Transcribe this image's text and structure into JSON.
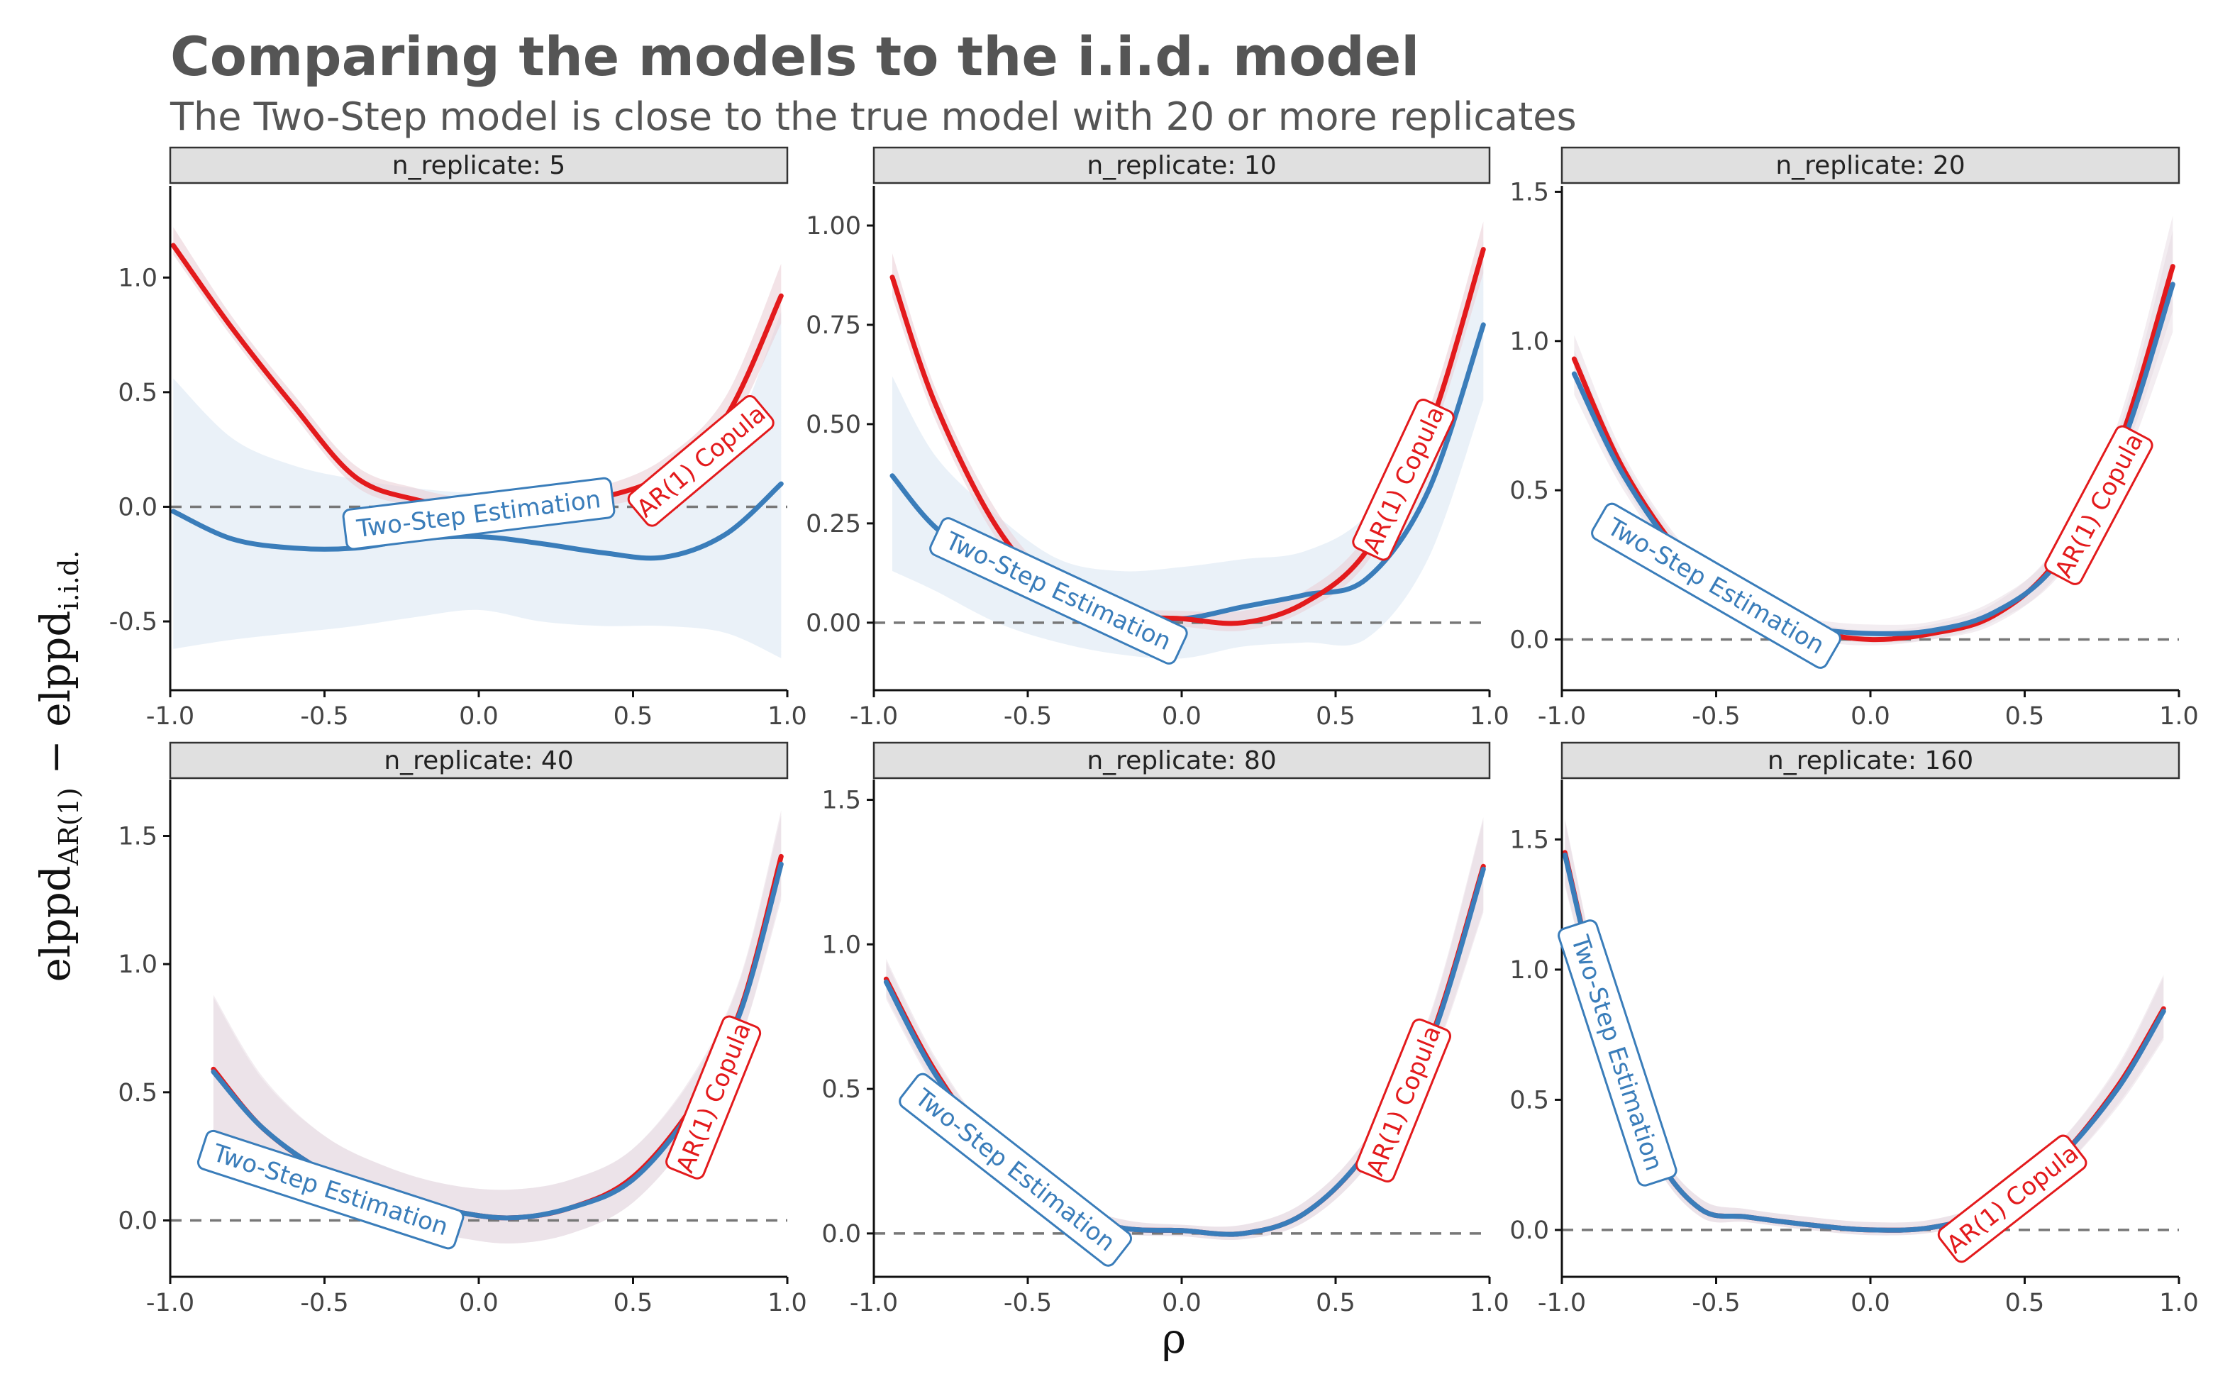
{
  "title": "Comparing the models to the i.i.d. model",
  "subtitle": "The Two-Step model is close to the true model with 20 or more replicates",
  "x_axis_label": "ρ",
  "y_axis_label": {
    "base1": "elppd",
    "sub1": "AR(1)",
    "minus": " − ",
    "base2": "elppd",
    "sub2": "i.i.d."
  },
  "colors": {
    "two_step": "#3A7DBA",
    "two_step_band": "#DCE8F4",
    "copula": "#E31A1C",
    "copula_band": "#E9CCD4",
    "overlap_band": "#E4D6E0",
    "reference": "#777777",
    "strip_fill": "#E0E0E0"
  },
  "chart_data": [
    {
      "type": "line",
      "panel": "n_replicate: 5",
      "xlim": [
        -1,
        1
      ],
      "ylim": [
        -0.8,
        1.4
      ],
      "x_ticks": [
        "-1.0",
        "-0.5",
        "0.0",
        "0.5",
        "1.0"
      ],
      "y_ticks": [
        "-0.5",
        "0.0",
        "0.5",
        "1.0"
      ],
      "reference_line": 0,
      "series": [
        {
          "name": "AR(1) Copula",
          "x": [
            -0.99,
            -0.8,
            -0.6,
            -0.4,
            -0.2,
            0.0,
            0.2,
            0.4,
            0.6,
            0.8,
            0.98
          ],
          "y": [
            1.14,
            0.78,
            0.44,
            0.13,
            0.03,
            -0.01,
            -0.01,
            0.04,
            0.14,
            0.39,
            0.92
          ],
          "lower": [
            1.1,
            0.74,
            0.4,
            0.09,
            0.0,
            -0.04,
            -0.04,
            0.0,
            0.08,
            0.31,
            0.8
          ],
          "upper": [
            1.22,
            0.83,
            0.49,
            0.18,
            0.08,
            0.03,
            0.03,
            0.09,
            0.21,
            0.48,
            1.06
          ],
          "label": "AR(1) Copula"
        },
        {
          "name": "Two-Step Estimation",
          "x": [
            -0.99,
            -0.8,
            -0.6,
            -0.4,
            -0.2,
            0.0,
            0.2,
            0.4,
            0.6,
            0.8,
            0.98
          ],
          "y": [
            -0.02,
            -0.14,
            -0.18,
            -0.18,
            -0.14,
            -0.13,
            -0.16,
            -0.2,
            -0.22,
            -0.12,
            0.1
          ],
          "lower": [
            -0.62,
            -0.58,
            -0.55,
            -0.52,
            -0.48,
            -0.45,
            -0.5,
            -0.52,
            -0.52,
            -0.55,
            -0.66
          ],
          "upper": [
            0.56,
            0.3,
            0.18,
            0.12,
            0.08,
            0.06,
            0.07,
            0.07,
            0.07,
            0.25,
            0.85
          ],
          "label": "Two-Step Estimation"
        }
      ]
    },
    {
      "type": "line",
      "panel": "n_replicate: 10",
      "xlim": [
        -1,
        1
      ],
      "ylim": [
        -0.17,
        1.1
      ],
      "x_ticks": [
        "-1.0",
        "-0.5",
        "0.0",
        "0.5",
        "1.0"
      ],
      "y_ticks": [
        "0.00",
        "0.25",
        "0.50",
        "0.75",
        "1.00"
      ],
      "reference_line": 0,
      "series": [
        {
          "name": "AR(1) Copula",
          "x": [
            -0.94,
            -0.8,
            -0.6,
            -0.4,
            -0.2,
            0.0,
            0.2,
            0.4,
            0.6,
            0.8,
            0.98
          ],
          "y": [
            0.87,
            0.55,
            0.24,
            0.07,
            0.02,
            0.01,
            0.0,
            0.05,
            0.18,
            0.48,
            0.94
          ],
          "lower": [
            0.82,
            0.51,
            0.21,
            0.05,
            0.0,
            -0.01,
            -0.02,
            0.03,
            0.15,
            0.44,
            0.88
          ],
          "upper": [
            0.93,
            0.59,
            0.28,
            0.1,
            0.04,
            0.03,
            0.03,
            0.08,
            0.22,
            0.53,
            1.01
          ],
          "label": "AR(1) Copula"
        },
        {
          "name": "Two-Step Estimation",
          "x": [
            -0.94,
            -0.8,
            -0.6,
            -0.4,
            -0.2,
            0.0,
            0.2,
            0.4,
            0.6,
            0.8,
            0.98
          ],
          "y": [
            0.37,
            0.24,
            0.13,
            0.06,
            0.02,
            0.01,
            0.04,
            0.07,
            0.11,
            0.33,
            0.75
          ],
          "lower": [
            0.13,
            0.08,
            0.0,
            -0.05,
            -0.08,
            -0.09,
            -0.06,
            -0.05,
            -0.04,
            0.16,
            0.56
          ],
          "upper": [
            0.62,
            0.42,
            0.27,
            0.16,
            0.13,
            0.14,
            0.16,
            0.18,
            0.27,
            0.5,
            0.96
          ],
          "label": "Two-Step Estimation"
        }
      ]
    },
    {
      "type": "line",
      "panel": "n_replicate: 20",
      "xlim": [
        -1,
        1
      ],
      "ylim": [
        -0.17,
        1.52
      ],
      "x_ticks": [
        "-1.0",
        "-0.5",
        "0.0",
        "0.5",
        "1.0"
      ],
      "y_ticks": [
        "0.0",
        "0.5",
        "1.0",
        "1.5"
      ],
      "reference_line": 0,
      "series": [
        {
          "name": "AR(1) Copula",
          "x": [
            -0.96,
            -0.8,
            -0.6,
            -0.4,
            -0.2,
            0.0,
            0.2,
            0.4,
            0.6,
            0.8,
            0.98
          ],
          "y": [
            0.94,
            0.57,
            0.27,
            0.1,
            0.03,
            0.0,
            0.02,
            0.08,
            0.26,
            0.64,
            1.25
          ],
          "lower": [
            0.87,
            0.52,
            0.23,
            0.07,
            0.0,
            -0.02,
            0.0,
            0.05,
            0.21,
            0.56,
            1.1
          ],
          "upper": [
            1.02,
            0.62,
            0.31,
            0.14,
            0.06,
            0.03,
            0.05,
            0.12,
            0.31,
            0.72,
            1.42
          ],
          "label": "AR(1) Copula"
        },
        {
          "name": "Two-Step Estimation",
          "x": [
            -0.96,
            -0.8,
            -0.6,
            -0.4,
            -0.2,
            0.0,
            0.2,
            0.4,
            0.6,
            0.8,
            0.98
          ],
          "y": [
            0.89,
            0.55,
            0.26,
            0.1,
            0.04,
            0.02,
            0.03,
            0.09,
            0.25,
            0.61,
            1.19
          ],
          "lower": [
            0.82,
            0.5,
            0.22,
            0.07,
            0.01,
            -0.01,
            0.0,
            0.06,
            0.2,
            0.53,
            1.03
          ],
          "upper": [
            0.97,
            0.6,
            0.3,
            0.13,
            0.07,
            0.05,
            0.06,
            0.13,
            0.3,
            0.69,
            1.37
          ],
          "label": "Two-Step Estimation"
        }
      ]
    },
    {
      "type": "line",
      "panel": "n_replicate: 40",
      "xlim": [
        -1,
        1
      ],
      "ylim": [
        -0.22,
        1.72
      ],
      "x_ticks": [
        "-1.0",
        "-0.5",
        "0.0",
        "0.5",
        "1.0"
      ],
      "y_ticks": [
        "0.0",
        "0.5",
        "1.0",
        "1.5"
      ],
      "reference_line": 0,
      "series": [
        {
          "name": "AR(1) Copula",
          "x": [
            -0.86,
            -0.7,
            -0.5,
            -0.3,
            -0.1,
            0.1,
            0.3,
            0.5,
            0.7,
            0.85,
            0.98
          ],
          "y": [
            0.59,
            0.36,
            0.19,
            0.1,
            0.04,
            0.01,
            0.05,
            0.17,
            0.46,
            0.83,
            1.42
          ],
          "lower": [
            0.3,
            0.17,
            0.05,
            -0.02,
            -0.06,
            -0.09,
            -0.05,
            0.07,
            0.35,
            0.71,
            1.27
          ],
          "upper": [
            0.88,
            0.56,
            0.33,
            0.21,
            0.14,
            0.12,
            0.16,
            0.28,
            0.58,
            0.96,
            1.6
          ],
          "label": "AR(1) Copula"
        },
        {
          "name": "Two-Step Estimation",
          "x": [
            -0.86,
            -0.7,
            -0.5,
            -0.3,
            -0.1,
            0.1,
            0.3,
            0.5,
            0.7,
            0.85,
            0.98
          ],
          "y": [
            0.58,
            0.36,
            0.19,
            0.1,
            0.04,
            0.01,
            0.05,
            0.16,
            0.45,
            0.82,
            1.39
          ],
          "lower": [
            0.3,
            0.17,
            0.05,
            -0.02,
            -0.06,
            -0.09,
            -0.05,
            0.07,
            0.35,
            0.71,
            1.25
          ],
          "upper": [
            0.87,
            0.55,
            0.33,
            0.21,
            0.14,
            0.12,
            0.16,
            0.28,
            0.57,
            0.95,
            1.58
          ],
          "label": "Two-Step Estimation"
        }
      ]
    },
    {
      "type": "line",
      "panel": "n_replicate: 80",
      "xlim": [
        -1,
        1
      ],
      "ylim": [
        -0.15,
        1.57
      ],
      "x_ticks": [
        "-1.0",
        "-0.5",
        "0.0",
        "0.5",
        "1.0"
      ],
      "y_ticks": [
        "0.0",
        "0.5",
        "1.0",
        "1.5"
      ],
      "reference_line": 0,
      "series": [
        {
          "name": "AR(1) Copula",
          "x": [
            -0.96,
            -0.8,
            -0.6,
            -0.4,
            -0.2,
            0.0,
            0.2,
            0.4,
            0.6,
            0.8,
            0.98
          ],
          "y": [
            0.88,
            0.56,
            0.27,
            0.09,
            0.02,
            0.01,
            0.0,
            0.07,
            0.28,
            0.65,
            1.27
          ],
          "lower": [
            0.82,
            0.51,
            0.23,
            0.06,
            0.0,
            -0.01,
            -0.02,
            0.04,
            0.23,
            0.57,
            1.12
          ],
          "upper": [
            0.95,
            0.61,
            0.31,
            0.13,
            0.05,
            0.03,
            0.03,
            0.11,
            0.33,
            0.74,
            1.44
          ],
          "label": "AR(1) Copula"
        },
        {
          "name": "Two-Step Estimation",
          "x": [
            -0.96,
            -0.8,
            -0.6,
            -0.4,
            -0.2,
            0.0,
            0.2,
            0.4,
            0.6,
            0.8,
            0.98
          ],
          "y": [
            0.87,
            0.55,
            0.27,
            0.09,
            0.02,
            0.01,
            0.0,
            0.07,
            0.28,
            0.64,
            1.26
          ],
          "lower": [
            0.81,
            0.5,
            0.23,
            0.06,
            0.0,
            -0.01,
            -0.02,
            0.04,
            0.23,
            0.56,
            1.11
          ],
          "upper": [
            0.94,
            0.6,
            0.31,
            0.13,
            0.05,
            0.03,
            0.03,
            0.11,
            0.33,
            0.73,
            1.43
          ],
          "label": "Two-Step Estimation"
        }
      ]
    },
    {
      "type": "line",
      "panel": "n_replicate: 160",
      "xlim": [
        -1,
        1
      ],
      "ylim": [
        -0.18,
        1.73
      ],
      "x_ticks": [
        "-1.0",
        "-0.5",
        "0.0",
        "0.5",
        "1.0"
      ],
      "y_ticks": [
        "0.0",
        "0.5",
        "1.0",
        "1.5"
      ],
      "reference_line": 0,
      "series": [
        {
          "name": "AR(1) Copula",
          "x": [
            -0.99,
            -0.85,
            -0.7,
            -0.55,
            -0.4,
            -0.2,
            0.0,
            0.2,
            0.4,
            0.6,
            0.8,
            0.95
          ],
          "y": [
            1.45,
            0.76,
            0.3,
            0.08,
            0.05,
            0.02,
            0.0,
            0.01,
            0.08,
            0.26,
            0.55,
            0.85
          ],
          "lower": [
            1.33,
            0.7,
            0.26,
            0.05,
            0.03,
            0.0,
            -0.02,
            -0.01,
            0.05,
            0.21,
            0.48,
            0.74
          ],
          "upper": [
            1.58,
            0.82,
            0.34,
            0.12,
            0.08,
            0.05,
            0.03,
            0.04,
            0.12,
            0.32,
            0.63,
            0.98
          ],
          "label": "AR(1) Copula"
        },
        {
          "name": "Two-Step Estimation",
          "x": [
            -0.99,
            -0.85,
            -0.7,
            -0.55,
            -0.4,
            -0.2,
            0.0,
            0.2,
            0.4,
            0.6,
            0.8,
            0.95
          ],
          "y": [
            1.44,
            0.76,
            0.3,
            0.08,
            0.05,
            0.02,
            0.0,
            0.01,
            0.08,
            0.26,
            0.54,
            0.84
          ],
          "lower": [
            1.32,
            0.7,
            0.26,
            0.05,
            0.03,
            0.0,
            -0.02,
            -0.01,
            0.05,
            0.21,
            0.47,
            0.73
          ],
          "upper": [
            1.57,
            0.82,
            0.34,
            0.12,
            0.08,
            0.05,
            0.03,
            0.04,
            0.12,
            0.32,
            0.62,
            0.97
          ],
          "label": "Two-Step Estimation"
        }
      ]
    }
  ]
}
